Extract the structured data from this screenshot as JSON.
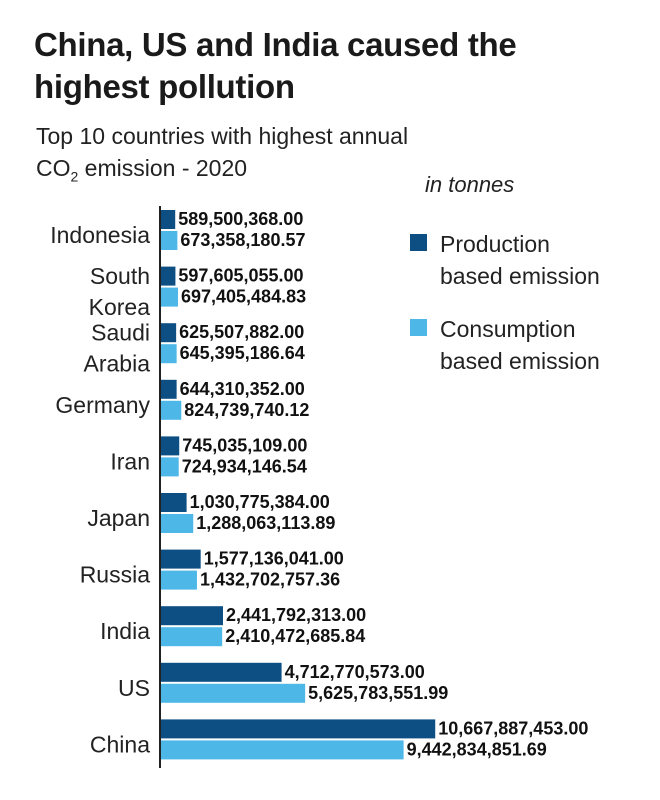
{
  "header": {
    "title": "China, US and India caused the highest pollution",
    "subtitle_pre": "Top 10 countries with highest annual CO",
    "subtitle_sub": "2",
    "subtitle_post": " emission - 2020",
    "unit": "in tonnes"
  },
  "colors": {
    "production": "#0d4f83",
    "consumption": "#4db8e8",
    "axis": "#222222"
  },
  "chart_data": {
    "type": "bar",
    "orientation": "horizontal",
    "title": "China, US and India caused the highest pollution",
    "subtitle": "Top 10 countries with highest annual CO2 emission - 2020",
    "unit": "in tonnes",
    "legend_position": "right",
    "grid": false,
    "categories": [
      [
        "Indonesia"
      ],
      [
        "South",
        "Korea"
      ],
      [
        "Saudi",
        "Arabia"
      ],
      [
        "Germany"
      ],
      [
        "Iran"
      ],
      [
        "Japan"
      ],
      [
        "Russia"
      ],
      [
        "India"
      ],
      [
        "US"
      ],
      [
        "China"
      ]
    ],
    "series": [
      {
        "name": "Production based emission",
        "values": [
          589500368.0,
          597605055.0,
          625507882.0,
          644310352.0,
          745035109.0,
          1030775384.0,
          1577136041.0,
          2441792313.0,
          4712770573.0,
          10667887453.0
        ],
        "labels": [
          "589,500,368.00",
          "597,605,055.00",
          "625,507,882.00",
          "644,310,352.00",
          "745,035,109.00",
          "1,030,775,384.00",
          "1,577,136,041.00",
          "2,441,792,313.00",
          "4,712,770,573.00",
          "10,667,887,453.00"
        ]
      },
      {
        "name": "Consumption based emission",
        "values": [
          673358180.57,
          697405484.83,
          645395186.64,
          824739740.12,
          724934146.54,
          1288063113.89,
          1432702757.36,
          2410472685.84,
          5625783551.99,
          9442834851.69
        ],
        "labels": [
          "673,358,180.57",
          "697,405,484.83",
          "645,395,186.64",
          "824,739,740.12",
          "724,934,146.54",
          "1,288,063,113.89",
          "1,432,702,757.36",
          "2,410,472,685.84",
          "5,625,783,551.99",
          "9,442,834,851.69"
        ]
      }
    ]
  },
  "legend": [
    {
      "key": "production",
      "lines": [
        "Production",
        "based emission"
      ]
    },
    {
      "key": "consumption",
      "lines": [
        "Consumption",
        "based emission"
      ]
    }
  ]
}
